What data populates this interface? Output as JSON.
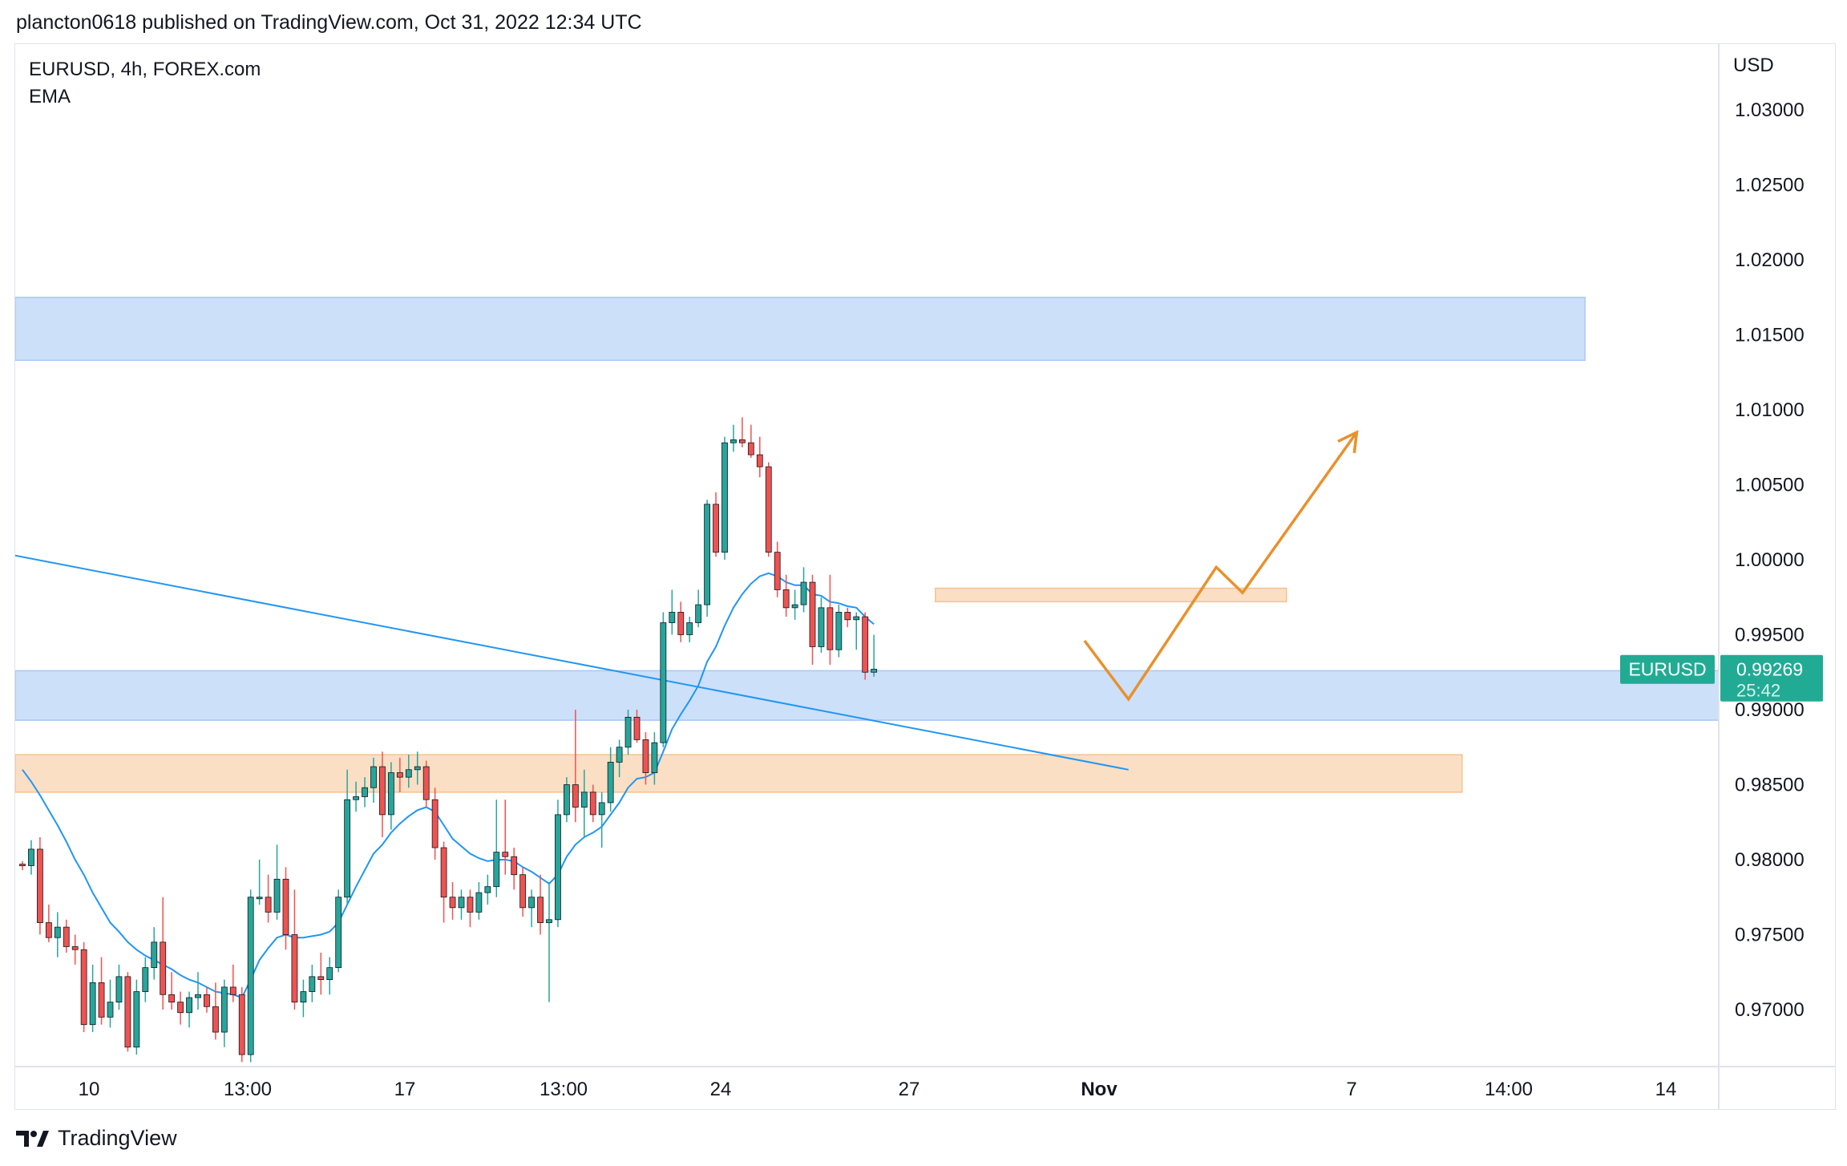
{
  "header": {
    "text": "plancton0618 published on TradingView.com, Oct 31, 2022 12:34 UTC"
  },
  "legend": {
    "symbol_line": "EURUSD, 4h, FOREX.com",
    "indicator": "EMA"
  },
  "footer": {
    "brand": "TradingView"
  },
  "colors": {
    "up": "#26a69a",
    "down": "#ef5350",
    "ema": "#2196f3",
    "zone_blue": "#bbd5f7",
    "zone_orange": "#f9d4b0",
    "projection": "#e8912d",
    "badge": "#22ab94"
  },
  "chart_data": {
    "type": "candlestick",
    "currency_label": "USD",
    "y_ticks": [
      "1.03000",
      "1.02500",
      "1.02000",
      "1.01500",
      "1.01000",
      "1.00500",
      "1.00000",
      "0.99500",
      "0.99000",
      "0.98500",
      "0.98000",
      "0.97500",
      "0.97000"
    ],
    "ylim": [
      0.9665,
      1.0335
    ],
    "x_ticks": [
      {
        "label": "10",
        "bold": false
      },
      {
        "label": "13:00",
        "bold": false
      },
      {
        "label": "17",
        "bold": false
      },
      {
        "label": "13:00",
        "bold": false
      },
      {
        "label": "24",
        "bold": false
      },
      {
        "label": "27",
        "bold": false
      },
      {
        "label": "Nov",
        "bold": true
      },
      {
        "label": "7",
        "bold": false
      },
      {
        "label": "14:00",
        "bold": false
      },
      {
        "label": "14",
        "bold": false
      }
    ],
    "last_price": {
      "symbol": "EURUSD",
      "price": "0.99269",
      "countdown": "25:42"
    },
    "candles": [
      [
        0.9797,
        0.9799,
        0.9793,
        0.9796
      ],
      [
        0.9796,
        0.9813,
        0.979,
        0.9807
      ],
      [
        0.9807,
        0.9815,
        0.975,
        0.9758
      ],
      [
        0.9758,
        0.977,
        0.9745,
        0.9748
      ],
      [
        0.9748,
        0.9765,
        0.9735,
        0.9755
      ],
      [
        0.9755,
        0.976,
        0.9738,
        0.9742
      ],
      [
        0.9742,
        0.975,
        0.973,
        0.974
      ],
      [
        0.974,
        0.9745,
        0.9685,
        0.969
      ],
      [
        0.969,
        0.973,
        0.9685,
        0.9718
      ],
      [
        0.9718,
        0.9735,
        0.969,
        0.9695
      ],
      [
        0.9695,
        0.972,
        0.9688,
        0.9705
      ],
      [
        0.9705,
        0.973,
        0.97,
        0.9722
      ],
      [
        0.9722,
        0.9725,
        0.9672,
        0.9675
      ],
      [
        0.9675,
        0.972,
        0.967,
        0.9712
      ],
      [
        0.9712,
        0.9735,
        0.9705,
        0.9728
      ],
      [
        0.9728,
        0.9755,
        0.972,
        0.9745
      ],
      [
        0.9745,
        0.9775,
        0.97,
        0.971
      ],
      [
        0.971,
        0.9725,
        0.97,
        0.9705
      ],
      [
        0.9705,
        0.9712,
        0.969,
        0.9698
      ],
      [
        0.9698,
        0.9712,
        0.9688,
        0.9708
      ],
      [
        0.9708,
        0.9725,
        0.97,
        0.971
      ],
      [
        0.971,
        0.9715,
        0.9698,
        0.9702
      ],
      [
        0.9702,
        0.9718,
        0.968,
        0.9685
      ],
      [
        0.9685,
        0.972,
        0.9675,
        0.9715
      ],
      [
        0.9715,
        0.973,
        0.9705,
        0.971
      ],
      [
        0.971,
        0.9715,
        0.9665,
        0.967
      ],
      [
        0.967,
        0.978,
        0.9665,
        0.9775
      ],
      [
        0.9775,
        0.98,
        0.977,
        0.9775
      ],
      [
        0.9775,
        0.979,
        0.9758,
        0.9765
      ],
      [
        0.9765,
        0.981,
        0.976,
        0.9787
      ],
      [
        0.9787,
        0.9795,
        0.974,
        0.975
      ],
      [
        0.975,
        0.978,
        0.97,
        0.9705
      ],
      [
        0.9705,
        0.972,
        0.9695,
        0.9712
      ],
      [
        0.9712,
        0.973,
        0.9705,
        0.9722
      ],
      [
        0.9722,
        0.9738,
        0.971,
        0.972
      ],
      [
        0.972,
        0.9735,
        0.971,
        0.9728
      ],
      [
        0.9728,
        0.978,
        0.9725,
        0.9775
      ],
      [
        0.9775,
        0.986,
        0.977,
        0.984
      ],
      [
        0.984,
        0.9852,
        0.9832,
        0.9842
      ],
      [
        0.9842,
        0.9855,
        0.9835,
        0.9848
      ],
      [
        0.9848,
        0.9868,
        0.9838,
        0.9862
      ],
      [
        0.9862,
        0.9872,
        0.9815,
        0.983
      ],
      [
        0.983,
        0.9865,
        0.982,
        0.9858
      ],
      [
        0.9858,
        0.9868,
        0.9845,
        0.9855
      ],
      [
        0.9855,
        0.987,
        0.9848,
        0.986
      ],
      [
        0.986,
        0.9872,
        0.985,
        0.9862
      ],
      [
        0.9862,
        0.9866,
        0.9835,
        0.984
      ],
      [
        0.984,
        0.9848,
        0.98,
        0.9808
      ],
      [
        0.9808,
        0.9812,
        0.9758,
        0.9775
      ],
      [
        0.9775,
        0.9785,
        0.976,
        0.9768
      ],
      [
        0.9768,
        0.978,
        0.976,
        0.9775
      ],
      [
        0.9775,
        0.978,
        0.9755,
        0.9765
      ],
      [
        0.9765,
        0.9785,
        0.976,
        0.9778
      ],
      [
        0.9778,
        0.979,
        0.977,
        0.9782
      ],
      [
        0.9782,
        0.984,
        0.9775,
        0.9805
      ],
      [
        0.9805,
        0.984,
        0.979,
        0.9802
      ],
      [
        0.9802,
        0.9808,
        0.978,
        0.979
      ],
      [
        0.979,
        0.9795,
        0.9762,
        0.9768
      ],
      [
        0.9768,
        0.978,
        0.9755,
        0.9775
      ],
      [
        0.9775,
        0.979,
        0.975,
        0.9758
      ],
      [
        0.9758,
        0.9785,
        0.9705,
        0.976
      ],
      [
        0.976,
        0.984,
        0.9755,
        0.983
      ],
      [
        0.983,
        0.9855,
        0.9825,
        0.985
      ],
      [
        0.985,
        0.99,
        0.9825,
        0.9835
      ],
      [
        0.9835,
        0.986,
        0.9815,
        0.9845
      ],
      [
        0.9845,
        0.985,
        0.9825,
        0.983
      ],
      [
        0.983,
        0.9845,
        0.9808,
        0.9838
      ],
      [
        0.9838,
        0.9875,
        0.9832,
        0.9865
      ],
      [
        0.9865,
        0.988,
        0.9855,
        0.9875
      ],
      [
        0.9875,
        0.99,
        0.987,
        0.9895
      ],
      [
        0.9895,
        0.99,
        0.9878,
        0.988
      ],
      [
        0.988,
        0.9885,
        0.985,
        0.9858
      ],
      [
        0.9858,
        0.9885,
        0.985,
        0.9878
      ],
      [
        0.9878,
        0.9965,
        0.9875,
        0.9958
      ],
      [
        0.9958,
        0.998,
        0.995,
        0.9965
      ],
      [
        0.9965,
        0.9972,
        0.9945,
        0.995
      ],
      [
        0.995,
        0.9962,
        0.9945,
        0.9958
      ],
      [
        0.9958,
        0.998,
        0.9955,
        0.997
      ],
      [
        0.997,
        1.004,
        0.9962,
        1.0037
      ],
      [
        1.0037,
        1.0045,
        1.0002,
        1.0005
      ],
      [
        1.0005,
        1.0082,
        1.0,
        1.0078
      ],
      [
        1.0078,
        1.009,
        1.0072,
        1.008
      ],
      [
        1.008,
        1.0095,
        1.0075,
        1.0078
      ],
      [
        1.0078,
        1.009,
        1.0068,
        1.007
      ],
      [
        1.007,
        1.0082,
        1.0055,
        1.0062
      ],
      [
        1.0062,
        1.0065,
        1.0002,
        1.0005
      ],
      [
        1.0005,
        1.0012,
        0.9975,
        0.998
      ],
      [
        0.998,
        0.999,
        0.9962,
        0.9968
      ],
      [
        0.9968,
        0.998,
        0.996,
        0.997
      ],
      [
        0.997,
        0.9995,
        0.9965,
        0.9985
      ],
      [
        0.9985,
        0.999,
        0.993,
        0.9942
      ],
      [
        0.9942,
        0.9975,
        0.9938,
        0.9968
      ],
      [
        0.9968,
        0.999,
        0.993,
        0.994
      ],
      [
        0.994,
        0.997,
        0.9935,
        0.9965
      ],
      [
        0.9965,
        0.9968,
        0.9955,
        0.996
      ],
      [
        0.996,
        0.9965,
        0.994,
        0.9962
      ],
      [
        0.9962,
        0.9965,
        0.992,
        0.9925
      ],
      [
        0.9925,
        0.995,
        0.9922,
        0.9927
      ]
    ],
    "ema": [
      0.986,
      0.9852,
      0.9843,
      0.9833,
      0.9823,
      0.9812,
      0.98,
      0.979,
      0.9778,
      0.9768,
      0.9758,
      0.9752,
      0.9745,
      0.974,
      0.9736,
      0.9733,
      0.973,
      0.9727,
      0.9723,
      0.972,
      0.9718,
      0.9715,
      0.9712,
      0.9711,
      0.971,
      0.9708,
      0.972,
      0.9733,
      0.9741,
      0.9748,
      0.975,
      0.9748,
      0.9748,
      0.9749,
      0.975,
      0.9752,
      0.9758,
      0.977,
      0.9782,
      0.9793,
      0.9804,
      0.981,
      0.9818,
      0.9824,
      0.9829,
      0.9833,
      0.9835,
      0.9832,
      0.9823,
      0.9814,
      0.9809,
      0.9804,
      0.9801,
      0.9799,
      0.98,
      0.98,
      0.9799,
      0.9795,
      0.9792,
      0.9788,
      0.9784,
      0.979,
      0.9802,
      0.981,
      0.9815,
      0.9818,
      0.9822,
      0.983,
      0.9838,
      0.9848,
      0.9854,
      0.9855,
      0.9858,
      0.9872,
      0.9887,
      0.9897,
      0.9906,
      0.9916,
      0.9932,
      0.9942,
      0.9956,
      0.9968,
      0.9977,
      0.9984,
      0.9989,
      0.9991,
      0.9989,
      0.9985,
      0.9983,
      0.9983,
      0.9977,
      0.9976,
      0.9972,
      0.9971,
      0.9969,
      0.9968,
      0.9962,
      0.9957
    ],
    "zones": [
      {
        "color": "blue",
        "start_index": -1,
        "end_index": 178,
        "from": 1.0133,
        "to": 1.0175
      },
      {
        "color": "blue",
        "start_index": -1,
        "end_index": 200,
        "from": 0.9893,
        "to": 0.9926
      },
      {
        "color": "orange",
        "start_index": -1,
        "end_index": 164,
        "from": 0.9845,
        "to": 0.987
      },
      {
        "color": "orange",
        "start_index": 104,
        "end_index": 144,
        "from": 0.9972,
        "to": 0.9981
      }
    ],
    "trendline": {
      "from": [
        -1,
        1.0003
      ],
      "to": [
        126,
        0.986
      ]
    },
    "projection": [
      [
        121,
        0.9946
      ],
      [
        126,
        0.9907
      ],
      [
        136,
        0.9995
      ],
      [
        139,
        0.9978
      ],
      [
        152,
        1.0085
      ]
    ]
  }
}
